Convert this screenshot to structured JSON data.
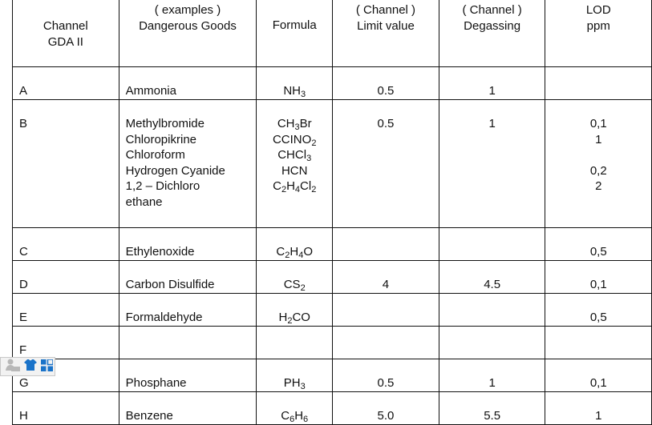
{
  "headers": {
    "channel": [
      "Channel",
      "GDA II"
    ],
    "goods": [
      "( examples )",
      "Dangerous Goods"
    ],
    "formula": [
      "Formula"
    ],
    "limit": [
      "( Channel )",
      "Limit value"
    ],
    "degassing": [
      "( Channel )",
      "Degassing"
    ],
    "lod": [
      "LOD",
      "ppm"
    ]
  },
  "rows": [
    {
      "channel": "A",
      "goods": [
        "Ammonia"
      ],
      "formula": [
        [
          "NH",
          "3"
        ]
      ],
      "limit": "0.5",
      "degassing": "1",
      "lod": [
        ""
      ]
    },
    {
      "channel": "B",
      "goods": [
        "Methylbromide",
        "Chloropikrine",
        "Chloroform",
        "Hydrogen Cyanide",
        "1,2 – Dichloro",
        "ethane"
      ],
      "formula": [
        [
          "CH",
          "3",
          "Br"
        ],
        [
          "CCINO",
          "2"
        ],
        [
          "CHCl",
          "3"
        ],
        [
          "HCN"
        ],
        [
          "C",
          "2",
          "H",
          "4",
          "Cl",
          "2"
        ]
      ],
      "limit": "0.5",
      "degassing": "1",
      "lod": [
        "0,1",
        "1",
        "",
        "0,2",
        "2"
      ]
    },
    {
      "channel": "C",
      "goods": [
        "Ethylenoxide"
      ],
      "formula": [
        [
          "C",
          "2",
          "H",
          "4",
          "O"
        ]
      ],
      "limit": "",
      "degassing": "",
      "lod": [
        "0,5"
      ]
    },
    {
      "channel": "D",
      "goods": [
        "Carbon Disulfide"
      ],
      "formula": [
        [
          "CS",
          "2"
        ]
      ],
      "limit": "4",
      "degassing": "4.5",
      "lod": [
        "0,1"
      ]
    },
    {
      "channel": "E",
      "goods": [
        "Formaldehyde"
      ],
      "formula": [
        [
          "H",
          "2",
          "CO"
        ]
      ],
      "limit": "",
      "degassing": "",
      "lod": [
        "0,5"
      ]
    },
    {
      "channel": "F",
      "goods": [
        ""
      ],
      "formula": [],
      "limit": "",
      "degassing": "",
      "lod": [
        ""
      ]
    },
    {
      "channel": "G",
      "goods": [
        "Phosphane"
      ],
      "formula": [
        [
          "PH",
          "3"
        ]
      ],
      "limit": "0.5",
      "degassing": "1",
      "lod": [
        "0,1"
      ]
    },
    {
      "channel": "H",
      "goods": [
        "Benzene"
      ],
      "formula": [
        [
          "C",
          "6",
          "H",
          "6"
        ]
      ],
      "limit": "5.0",
      "degassing": "5.5",
      "lod": [
        "1"
      ]
    }
  ],
  "toolbar": {
    "icons": [
      "user-badge-icon",
      "shirt-icon",
      "grid-icon"
    ],
    "accent": "#1a73c9"
  }
}
